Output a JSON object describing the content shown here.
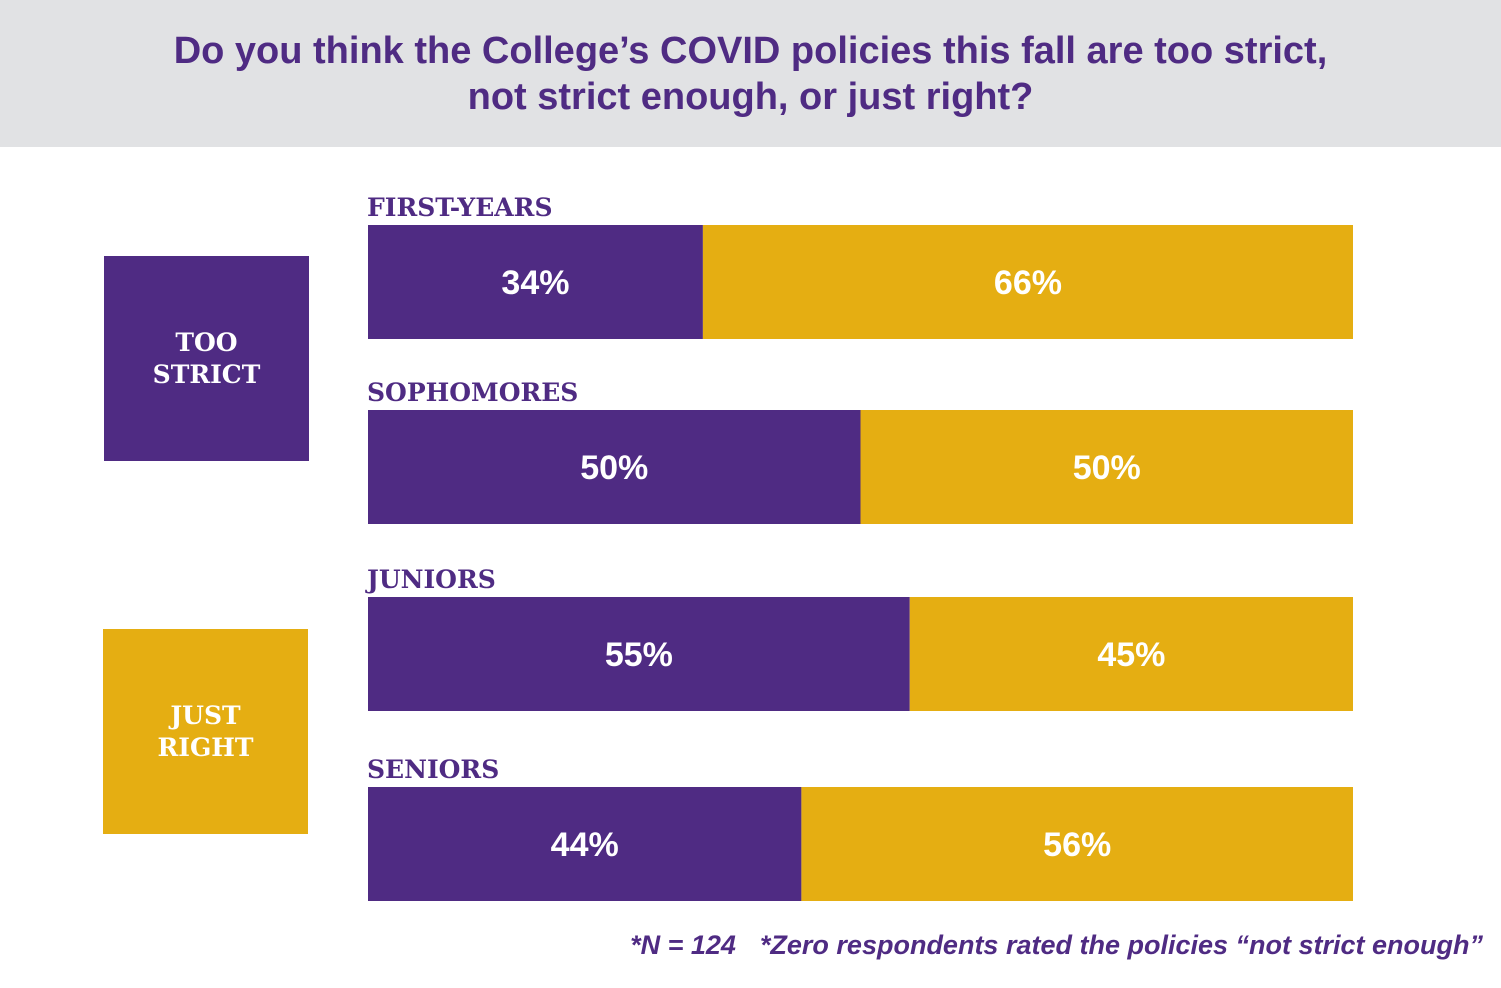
{
  "title_lines": [
    "Do you think the College’s COVID policies this fall are too strict,",
    "not strict enough, or just right?"
  ],
  "legend": [
    {
      "lines": [
        "TOO",
        "STRICT"
      ],
      "color": "#4f2b83"
    },
    {
      "lines": [
        "JUST",
        "RIGHT"
      ],
      "color": "#e5ae12"
    }
  ],
  "footnote": {
    "n_text": "*N = 124",
    "note_text": "*Zero respondents rated the policies “not strict enough”"
  },
  "chart_data": {
    "type": "bar",
    "orientation": "horizontal",
    "stacked": true,
    "categories": [
      "FIRST-YEARS",
      "SOPHOMORES",
      "JUNIORS",
      "SENIORS"
    ],
    "series": [
      {
        "name": "TOO STRICT",
        "values": [
          34,
          50,
          55,
          44
        ],
        "labels": [
          "34%",
          "50%",
          "55%",
          "44%"
        ],
        "color": "#4f2b83"
      },
      {
        "name": "JUST RIGHT",
        "values": [
          66,
          50,
          45,
          56
        ],
        "labels": [
          "66%",
          "50%",
          "45%",
          "56%"
        ],
        "color": "#e5ae12"
      }
    ],
    "xlim": [
      0,
      100
    ],
    "category_label_color": "#4f2b83",
    "value_label_color": "#ffffff"
  }
}
